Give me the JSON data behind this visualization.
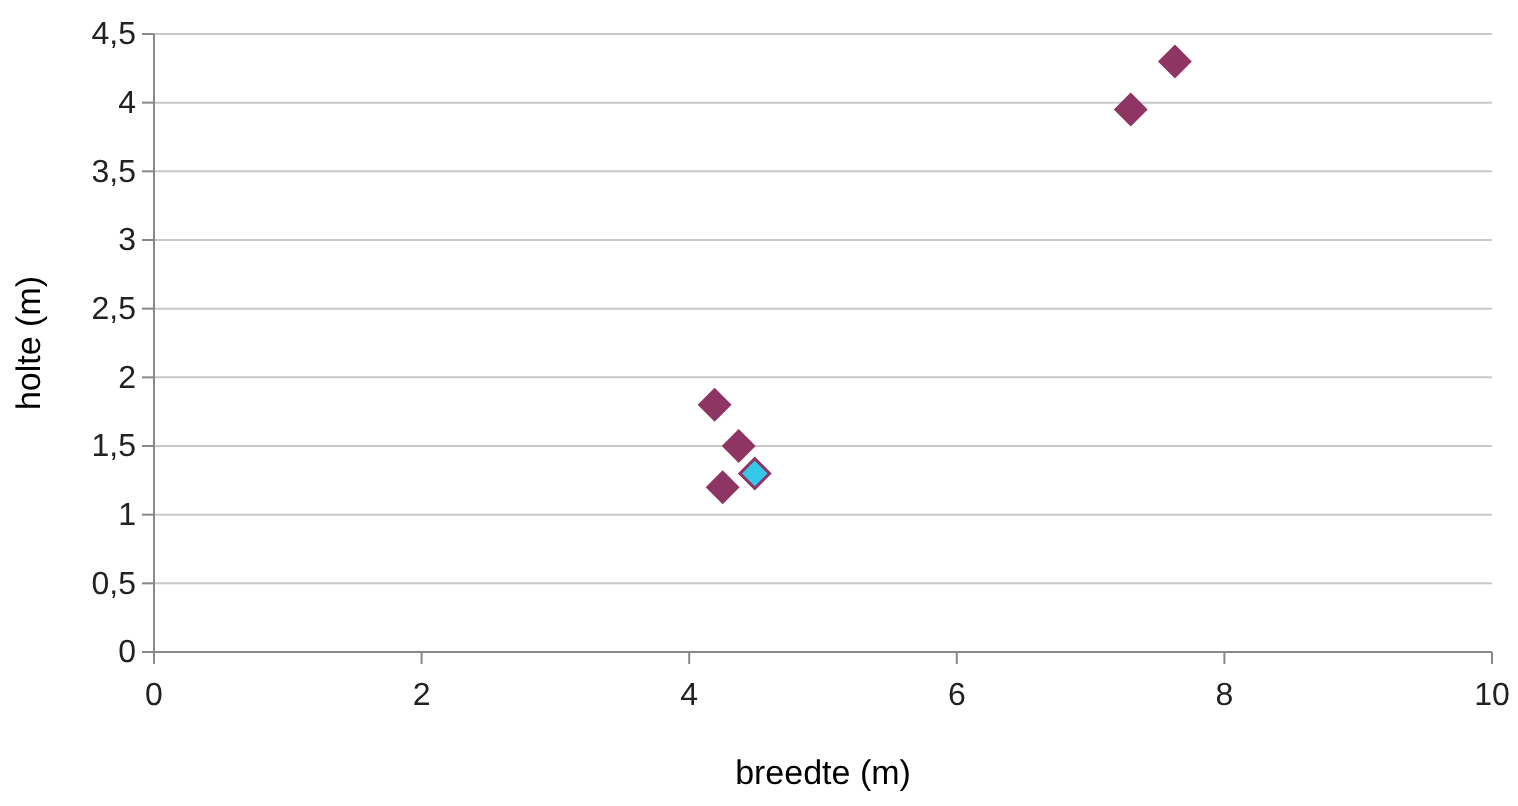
{
  "chart_data": {
    "type": "scatter",
    "xlabel": "breedte (m)",
    "ylabel": "holte (m)",
    "xlim": [
      0,
      10
    ],
    "xticks": [
      0,
      2,
      4,
      6,
      8,
      10
    ],
    "ylim": [
      0,
      4.5
    ],
    "yticks": [
      0,
      {
        "value": 0.5,
        "label": "0,5"
      },
      1,
      {
        "value": 1.5,
        "label": "1,5"
      },
      2,
      {
        "value": 2.5,
        "label": "2,5"
      },
      3,
      {
        "value": 3.5,
        "label": "3,5"
      },
      4,
      {
        "value": 4.5,
        "label": "4,5"
      }
    ],
    "grid": "y",
    "marker": "diamond",
    "series": [
      {
        "color": "#8e3563",
        "x": [
          7.63,
          7.3,
          4.19,
          4.37,
          4.25
        ],
        "values": [
          4.3,
          3.95,
          1.8,
          1.5,
          1.2
        ]
      },
      {
        "color": "#33c8e8",
        "x": [
          4.49
        ],
        "values": [
          1.3
        ]
      }
    ]
  }
}
